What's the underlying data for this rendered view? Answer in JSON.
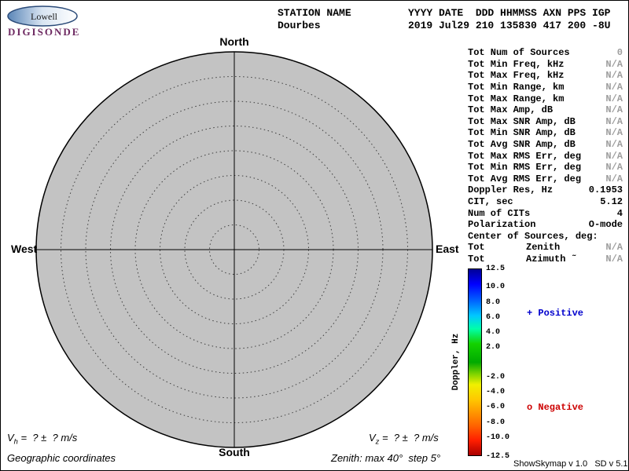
{
  "header": {
    "logo_top": "Lowell",
    "logo_bottom": "DIGISONDE",
    "station_label": "STATION NAME",
    "station_value": "Dourbes",
    "columns_label": "YYYY DATE  DDD HHMMSS AXN PPS IGP",
    "columns_value": "2019 Jul29 210 135830 417 200 -8U"
  },
  "skymap": {
    "north": "North",
    "south": "South",
    "east": "East",
    "west": "West"
  },
  "stats": {
    "rows": [
      {
        "label": "Tot Num of Sources",
        "value": "0",
        "muted": true
      },
      {
        "label": "Tot Min Freq, kHz",
        "value": "N/A",
        "muted": true
      },
      {
        "label": "Tot Max Freq, kHz",
        "value": "N/A",
        "muted": true
      },
      {
        "label": "Tot Min Range, km",
        "value": "N/A",
        "muted": true
      },
      {
        "label": "Tot Max Range, km",
        "value": "N/A",
        "muted": true
      },
      {
        "label": "Tot Max Amp, dB",
        "value": "N/A",
        "muted": true
      },
      {
        "label": "Tot Max SNR Amp, dB",
        "value": "N/A",
        "muted": true
      },
      {
        "label": "Tot Min SNR Amp, dB",
        "value": "N/A",
        "muted": true
      },
      {
        "label": "Tot Avg SNR Amp, dB",
        "value": "N/A",
        "muted": true
      },
      {
        "label": "Tot Max RMS Err, deg",
        "value": "N/A",
        "muted": true
      },
      {
        "label": "Tot Min RMS Err, deg",
        "value": "N/A",
        "muted": true
      },
      {
        "label": "Tot Avg RMS Err, deg",
        "value": "N/A",
        "muted": true
      },
      {
        "label": "Doppler Res, Hz",
        "value": "0.1953",
        "muted": false
      },
      {
        "label": "CIT, sec",
        "value": "5.12",
        "muted": false
      },
      {
        "label": "Num of CITs",
        "value": "4",
        "muted": false
      },
      {
        "label": "Polarization",
        "value": "O-mode",
        "muted": false
      },
      {
        "label": "Center of Sources, deg:",
        "value": null
      },
      {
        "label": "Tot",
        "mid": "Zenith",
        "value": "N/A",
        "muted": true
      },
      {
        "label": "Tot",
        "mid": "Azimuth ˜",
        "value": "N/A",
        "muted": true
      }
    ]
  },
  "colorbar": {
    "title": "Doppler, Hz",
    "range": [
      -12.5,
      12.5
    ],
    "ticks": [
      "12.5",
      "10.0",
      "8.0",
      "6.0",
      "4.0",
      "2.0",
      "-2.0",
      "-4.0",
      "-6.0",
      "-8.0",
      "-10.0",
      "-12.5"
    ],
    "stops": [
      "#000096 0%",
      "#0000ff 8%",
      "#0064ff 17%",
      "#00c8ff 25%",
      "#00ffaa 32%",
      "#14d200 40%",
      "#00aa00 50%",
      "#78d200 56%",
      "#f0f000 62%",
      "#ffc800 70%",
      "#ff9600 77%",
      "#ff6400 84%",
      "#ff1e00 92%",
      "#aa0000 100%"
    ]
  },
  "legend": {
    "positive": "+ Positive",
    "positive_color": "#0000cd",
    "negative": "o Negative",
    "negative_color": "#cd0000"
  },
  "footer": {
    "vh_prefix": "V",
    "vh_sub": "h",
    "vh_rest": " =  ? ±  ? m/s",
    "vz_prefix": "V",
    "vz_sub": "z",
    "vz_rest": " =  ? ±  ? m/s",
    "coords": "Geographic coordinates",
    "zenith_note": "Zenith: max 40°  step 5°",
    "version": "ShowSkymap v 1.0   SD v 5.1"
  },
  "chart_data": {
    "type": "scatter",
    "subtype": "polar-skymap",
    "points": [],
    "num_sources": 0,
    "zenith_max_deg": 40,
    "zenith_step_deg": 5,
    "zenith_rings_deg": [
      5,
      10,
      15,
      20,
      25,
      30,
      35
    ],
    "directions": [
      "North",
      "East",
      "South",
      "West"
    ],
    "colorbar_label": "Doppler, Hz",
    "colorbar_range": [
      -12.5,
      12.5
    ],
    "legend": [
      "+ Positive",
      "o Negative"
    ]
  }
}
